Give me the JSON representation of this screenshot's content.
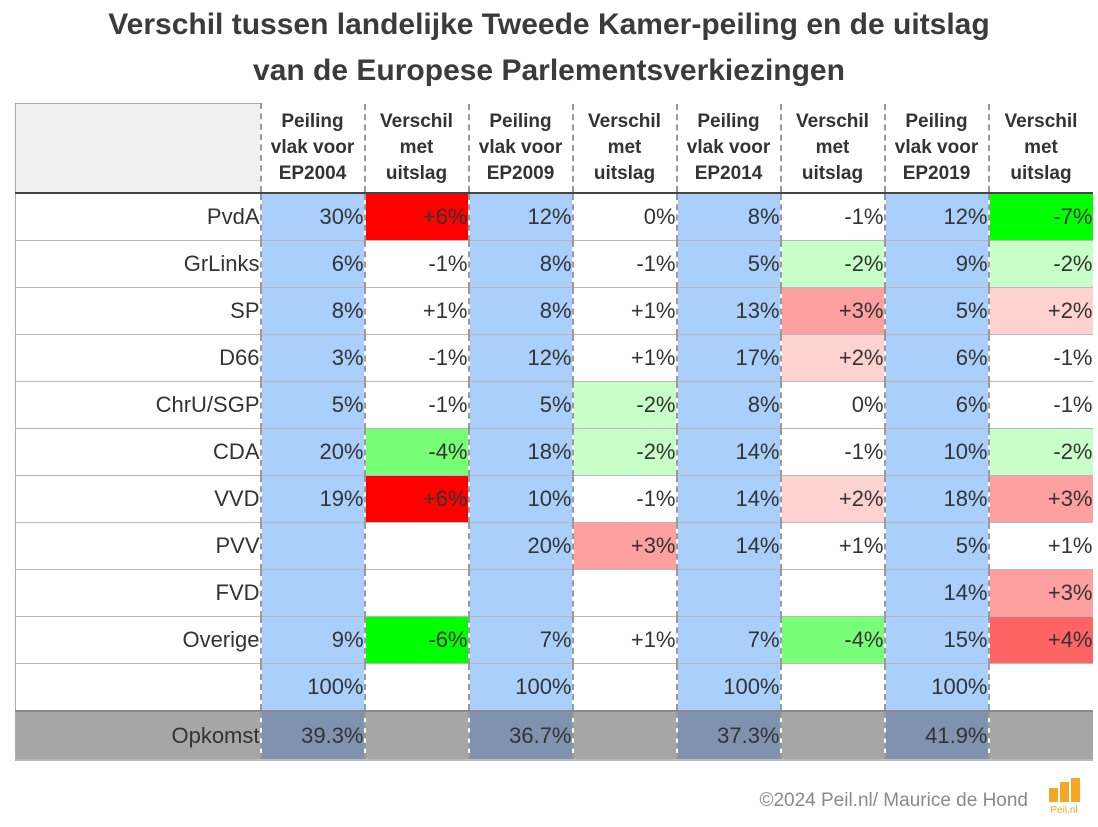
{
  "title_line1": "Verschil tussen landelijke Tweede Kamer-peiling en de uitslag",
  "title_line2": "van de Europese Parlementsverkiezingen",
  "footer": "©2024 Peil.nl/ Maurice de Hond",
  "logo_text": "Peil.nl",
  "headers": [
    {
      "poll": [
        "Peiling",
        "vlak voor",
        "EP2004"
      ],
      "diff": [
        "Verschil",
        "met",
        "uitslag"
      ]
    },
    {
      "poll": [
        "Peiling",
        "vlak voor",
        "EP2009"
      ],
      "diff": [
        "Verschil",
        "met",
        "uitslag"
      ]
    },
    {
      "poll": [
        "Peiling",
        "vlak voor",
        "EP2014"
      ],
      "diff": [
        "Verschil",
        "met",
        "uitslag"
      ]
    },
    {
      "poll": [
        "Peiling",
        "vlak voor",
        "EP2019"
      ],
      "diff": [
        "Verschil",
        "met",
        "uitslag"
      ]
    }
  ],
  "chart_data": {
    "type": "table",
    "title": "Verschil tussen landelijke Tweede Kamer-peiling en de uitslag van de Europese Parlementsverkiezingen",
    "columns": [
      "Peiling vlak voor EP2004",
      "Verschil met uitslag",
      "Peiling vlak voor EP2009",
      "Verschil met uitslag",
      "Peiling vlak voor EP2014",
      "Verschil met uitslag",
      "Peiling vlak voor EP2019",
      "Verschil met uitslag"
    ],
    "rows": [
      {
        "label": "PvdA",
        "cells": [
          "30%",
          "+6%",
          "12%",
          "0%",
          "8%",
          "-1%",
          "12%",
          "-7%"
        ]
      },
      {
        "label": "GrLinks",
        "cells": [
          "6%",
          "-1%",
          "8%",
          "-1%",
          "5%",
          "-2%",
          "9%",
          "-2%"
        ]
      },
      {
        "label": "SP",
        "cells": [
          "8%",
          "+1%",
          "8%",
          "+1%",
          "13%",
          "+3%",
          "5%",
          "+2%"
        ]
      },
      {
        "label": "D66",
        "cells": [
          "3%",
          "-1%",
          "12%",
          "+1%",
          "17%",
          "+2%",
          "6%",
          "-1%"
        ]
      },
      {
        "label": "ChrU/SGP",
        "cells": [
          "5%",
          "-1%",
          "5%",
          "-2%",
          "8%",
          "0%",
          "6%",
          "-1%"
        ]
      },
      {
        "label": "CDA",
        "cells": [
          "20%",
          "-4%",
          "18%",
          "-2%",
          "14%",
          "-1%",
          "10%",
          "-2%"
        ]
      },
      {
        "label": "VVD",
        "cells": [
          "19%",
          "+6%",
          "10%",
          "-1%",
          "14%",
          "+2%",
          "18%",
          "+3%"
        ]
      },
      {
        "label": "PVV",
        "cells": [
          "",
          "",
          "20%",
          "+3%",
          "14%",
          "+1%",
          "5%",
          "+1%"
        ]
      },
      {
        "label": "FVD",
        "cells": [
          "",
          "",
          "",
          "",
          "",
          "",
          "14%",
          "+3%"
        ]
      },
      {
        "label": "Overige",
        "cells": [
          "9%",
          "-6%",
          "7%",
          "+1%",
          "7%",
          "-4%",
          "15%",
          "+4%"
        ]
      },
      {
        "label": "",
        "cells": [
          "100%",
          "",
          "100%",
          "",
          "100%",
          "",
          "100%",
          ""
        ]
      }
    ],
    "turnout": {
      "label": "Opkomst",
      "cells": [
        "39.3%",
        "",
        "36.7%",
        "",
        "37.3%",
        "",
        "41.9%",
        ""
      ]
    },
    "colors": {
      "poll_bg": "#a9cffa",
      "turnout_bg": "#a6a6a6",
      "turnout_poll_bg": "#7f93b0",
      "pos_6": "#ff0000",
      "pos_4": "#ff6464",
      "pos_3": "#ffa0a0",
      "pos_2": "#ffd2d2",
      "neg_2": "#c8ffc8",
      "neg_4": "#78ff78",
      "neg_6": "#00ff00",
      "neutral": "#ffffff"
    }
  }
}
